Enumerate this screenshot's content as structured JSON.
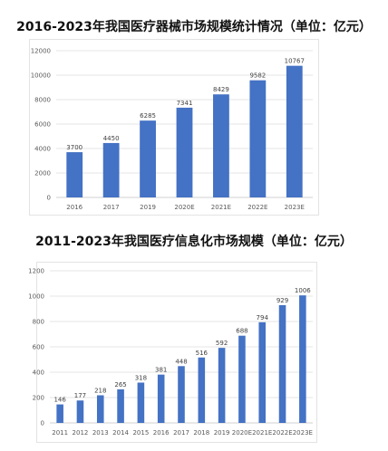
{
  "chart_data": [
    {
      "type": "bar",
      "title": "2016-2023年我国医疗器械市场规模统计情况（单位：亿元）",
      "categories": [
        "2016",
        "2017",
        "2019",
        "2020E",
        "2021E",
        "2022E",
        "2023E"
      ],
      "values": [
        3700,
        4450,
        6285,
        7341,
        8429,
        9582,
        10767
      ],
      "yticks": [
        0,
        2000,
        4000,
        6000,
        8000,
        10000,
        12000
      ],
      "ylim": [
        0,
        12000
      ],
      "grid": true,
      "color": "#4472c4"
    },
    {
      "type": "bar",
      "title": "2011-2023年我国医疗信息化市场规模（单位：亿元）",
      "categories": [
        "2011",
        "2012",
        "2013",
        "2014",
        "2015",
        "2016",
        "2017",
        "2018",
        "2019",
        "2020E",
        "2021E",
        "2022E",
        "2023E"
      ],
      "values": [
        146,
        177,
        218,
        265,
        318,
        381,
        448,
        516,
        592,
        688,
        794,
        929,
        1006
      ],
      "yticks": [
        0,
        200,
        400,
        600,
        800,
        1000,
        1200
      ],
      "ylim": [
        0,
        1200
      ],
      "grid": true,
      "color": "#4472c4"
    }
  ]
}
